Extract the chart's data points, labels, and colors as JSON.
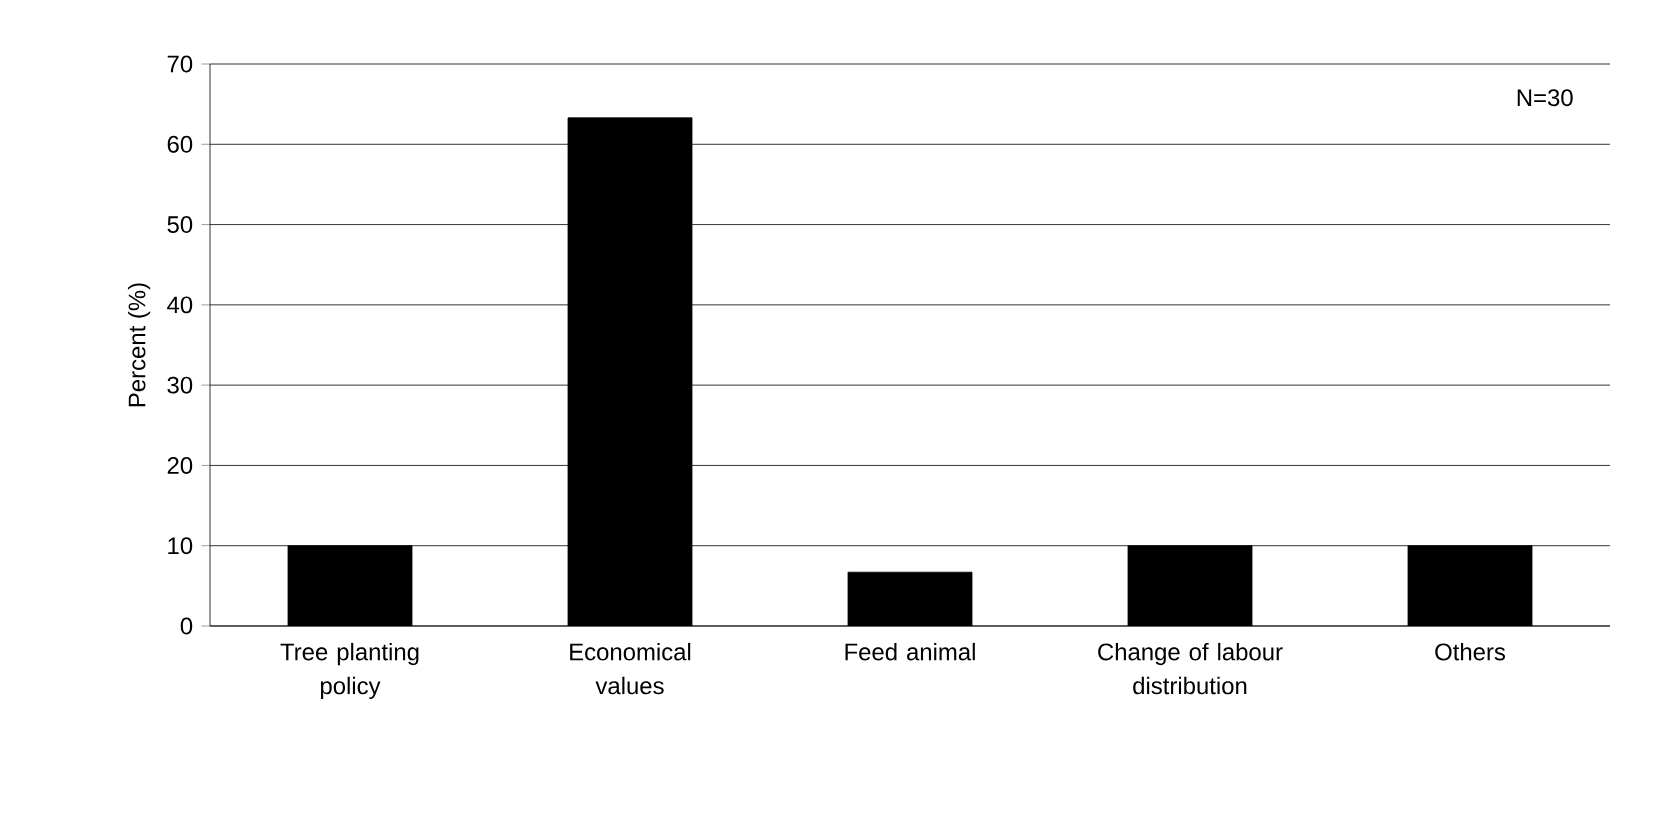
{
  "chart_data": {
    "type": "bar",
    "ylabel": "Percent (%)",
    "categories": [
      "Tree planting policy",
      "Economical values",
      "Feed animal",
      "Change of labour distribution",
      "Others"
    ],
    "values": [
      10,
      63.3,
      6.7,
      10,
      10
    ],
    "color": "#000000",
    "ylim": [
      0,
      70
    ],
    "yticks": [
      0,
      10,
      20,
      30,
      40,
      50,
      60,
      70
    ],
    "grid": "y",
    "annotations": [
      "N=30"
    ]
  }
}
